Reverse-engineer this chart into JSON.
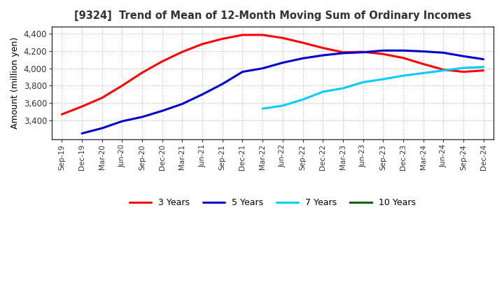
{
  "title": "[9324]  Trend of Mean of 12-Month Moving Sum of Ordinary Incomes",
  "ylabel": "Amount (million yen)",
  "background_color": "#ffffff",
  "plot_bg_color": "#ffffff",
  "grid_color": "#999999",
  "x_labels": [
    "Sep-19",
    "Dec-19",
    "Mar-20",
    "Jun-20",
    "Sep-20",
    "Dec-20",
    "Mar-21",
    "Jun-21",
    "Sep-21",
    "Dec-21",
    "Mar-22",
    "Jun-22",
    "Sep-22",
    "Dec-22",
    "Mar-23",
    "Jun-23",
    "Sep-23",
    "Dec-23",
    "Mar-24",
    "Jun-24",
    "Sep-24",
    "Dec-24"
  ],
  "ylim": [
    3180,
    4480
  ],
  "yticks": [
    3400,
    3600,
    3800,
    4000,
    4200,
    4400
  ],
  "series": {
    "3 Years": {
      "color": "#ff0000",
      "linewidth": 2.2,
      "data_x": [
        0,
        1,
        2,
        3,
        4,
        5,
        6,
        7,
        8,
        9,
        10,
        11,
        12,
        13,
        14,
        15,
        16,
        17,
        18,
        19,
        20,
        21
      ],
      "data_y": [
        3470,
        3560,
        3660,
        3800,
        3950,
        4080,
        4190,
        4280,
        4340,
        4385,
        4385,
        4350,
        4295,
        4235,
        4185,
        4190,
        4165,
        4120,
        4050,
        3985,
        3960,
        3975
      ]
    },
    "5 Years": {
      "color": "#0000cc",
      "linewidth": 2.2,
      "data_x": [
        1,
        2,
        3,
        4,
        5,
        6,
        7,
        8,
        9,
        10,
        11,
        12,
        13,
        14,
        15,
        16,
        17,
        18,
        19,
        20,
        21
      ],
      "data_y": [
        3250,
        3310,
        3390,
        3440,
        3510,
        3590,
        3700,
        3820,
        3960,
        4000,
        4065,
        4115,
        4150,
        4175,
        4185,
        4205,
        4205,
        4195,
        4180,
        4140,
        4105
      ]
    },
    "7 Years": {
      "color": "#00ccff",
      "linewidth": 2.2,
      "data_x": [
        10,
        11,
        12,
        13,
        14,
        15,
        16,
        17,
        18,
        19,
        20,
        21
      ],
      "data_y": [
        3535,
        3570,
        3640,
        3730,
        3770,
        3840,
        3875,
        3915,
        3945,
        3975,
        4005,
        4015
      ]
    },
    "10 Years": {
      "color": "#006600",
      "linewidth": 2.2,
      "data_x": [],
      "data_y": []
    }
  },
  "legend_labels": [
    "3 Years",
    "5 Years",
    "7 Years",
    "10 Years"
  ],
  "legend_colors": [
    "#ff0000",
    "#0000cc",
    "#00ccff",
    "#006600"
  ]
}
